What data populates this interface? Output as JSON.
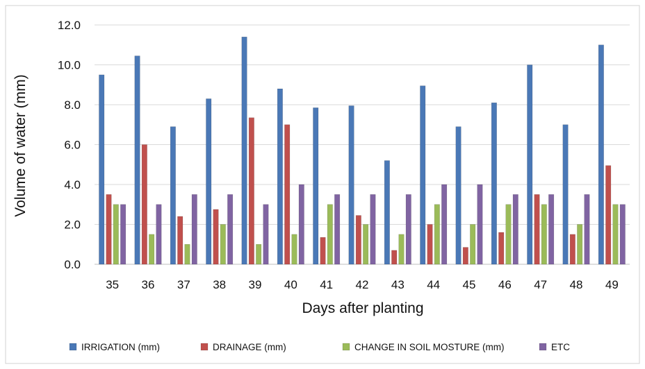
{
  "chart_data": {
    "type": "bar",
    "title": "",
    "xlabel": "Days after planting",
    "ylabel": "Volume of water (mm)",
    "ylim": [
      0,
      12
    ],
    "yticks": [
      "0.0",
      "2.0",
      "4.0",
      "6.0",
      "8.0",
      "10.0",
      "12.0"
    ],
    "grid": true,
    "legend_position": "bottom",
    "categories": [
      "35",
      "36",
      "37",
      "38",
      "39",
      "40",
      "41",
      "42",
      "43",
      "44",
      "45",
      "46",
      "47",
      "48",
      "49"
    ],
    "series": [
      {
        "name": "IRRIGATION (mm)",
        "color": "#4a78b6",
        "values": [
          9.5,
          10.45,
          6.9,
          8.3,
          11.4,
          8.8,
          7.85,
          7.95,
          5.2,
          8.95,
          6.9,
          8.1,
          10.0,
          7.0,
          11.0
        ]
      },
      {
        "name": "DRAINAGE (mm)",
        "color": "#c0504d",
        "values": [
          3.5,
          6.0,
          2.4,
          2.75,
          7.35,
          7.0,
          1.35,
          2.45,
          0.7,
          2.0,
          0.85,
          1.6,
          3.5,
          1.5,
          4.95
        ]
      },
      {
        "name": "CHANGE IN SOIL MOSTURE (mm)",
        "color": "#9bbb59",
        "values": [
          3.0,
          1.5,
          1.0,
          2.0,
          1.0,
          1.5,
          3.0,
          2.0,
          1.5,
          3.0,
          2.0,
          3.0,
          3.0,
          2.0,
          3.0
        ]
      },
      {
        "name": "ETC",
        "color": "#8064a2",
        "values": [
          3.0,
          3.0,
          3.5,
          3.5,
          3.0,
          4.0,
          3.5,
          3.5,
          3.5,
          4.0,
          4.0,
          3.5,
          3.5,
          3.5,
          3.0
        ]
      }
    ]
  }
}
